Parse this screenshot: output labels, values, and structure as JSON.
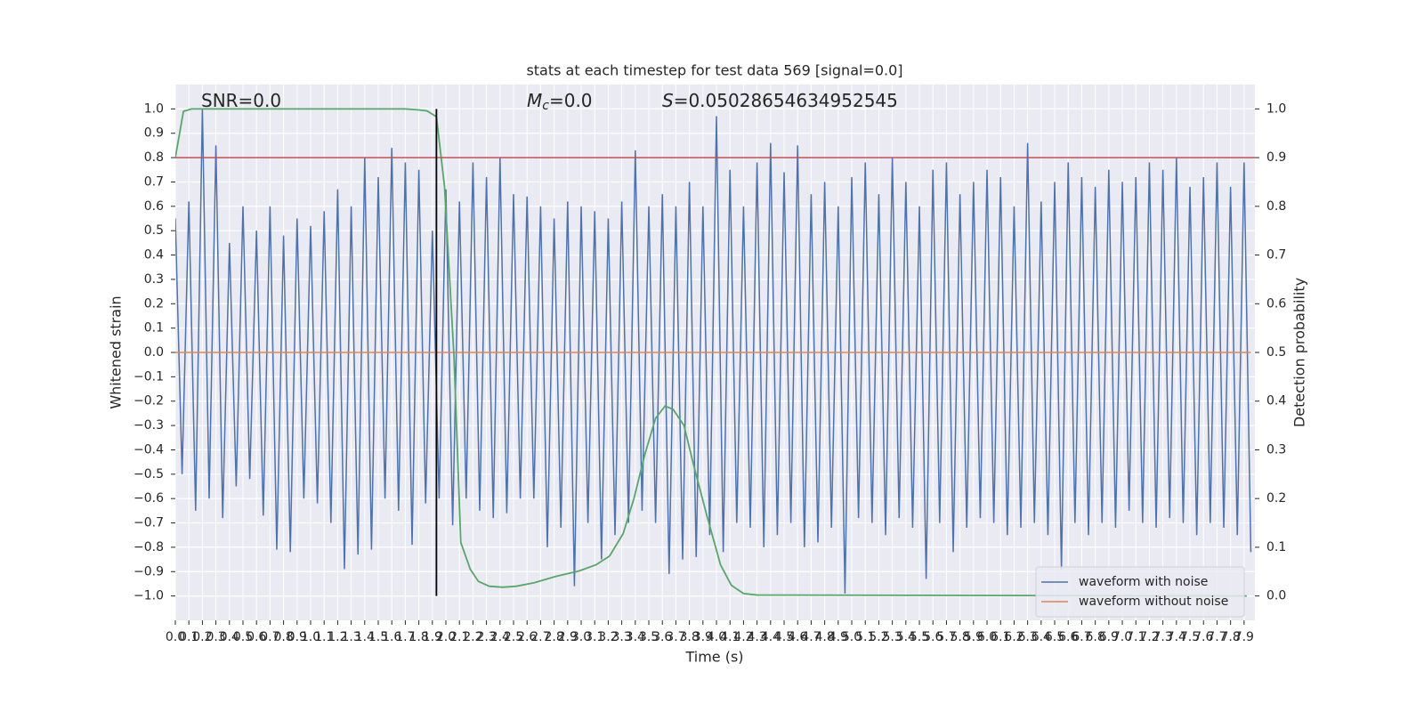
{
  "chart_data": {
    "type": "line",
    "title": "stats at each timestep for test data 569 [signal=0.0]",
    "xlabel": "Time (s)",
    "ylabel": "Whitened strain",
    "y2label": "Detection probability",
    "grid": true,
    "legend": "lower right",
    "annotations": [
      {
        "text": "SNR=0.0"
      },
      {
        "symbol": "M",
        "subscript": "c",
        "text": "=0.0"
      },
      {
        "symbol": "S",
        "text": "=0.05028654634952545"
      }
    ],
    "xlim": [
      0,
      7.98
    ],
    "ylim": [
      -1.1,
      1.1
    ],
    "y2lim": [
      -0.05,
      1.05
    ],
    "xticks": [
      {
        "value": 0,
        "label": "0.0"
      },
      0.1,
      0.2,
      0.3,
      0.4,
      0.5,
      0.6,
      0.7,
      0.8,
      0.9,
      {
        "value": 1,
        "label": "1.0"
      },
      1.1,
      1.2,
      1.3,
      1.4,
      1.5,
      1.6,
      1.7,
      1.8,
      1.9,
      {
        "value": 2,
        "label": "2.0"
      },
      2.1,
      2.2,
      2.3,
      2.4,
      2.5,
      2.6,
      2.7,
      2.8,
      2.9,
      {
        "value": 3,
        "label": "3.0"
      },
      3.1,
      3.2,
      3.3,
      3.4,
      3.5,
      3.6,
      3.7,
      3.8,
      3.9,
      {
        "value": 4,
        "label": "4.0"
      },
      4.1,
      4.2,
      4.3,
      4.4,
      4.5,
      4.6,
      4.7,
      4.8,
      4.9,
      {
        "value": 5,
        "label": "5.0"
      },
      5.1,
      5.2,
      5.3,
      5.4,
      5.5,
      5.6,
      5.7,
      5.8,
      5.9,
      {
        "value": 6,
        "label": "6.0"
      },
      6.1,
      6.2,
      6.3,
      6.4,
      6.5,
      6.6,
      6.7,
      6.8,
      6.9,
      {
        "value": 7,
        "label": "7.0"
      },
      7.1,
      7.2,
      7.3,
      7.4,
      7.5,
      7.6,
      7.7,
      7.8,
      7.9
    ],
    "yticks": [
      {
        "value": -1,
        "label": "−1.0"
      },
      {
        "value": -0.9,
        "label": "−0.9"
      },
      {
        "value": -0.8,
        "label": "−0.8"
      },
      {
        "value": -0.7,
        "label": "−0.7"
      },
      {
        "value": -0.6,
        "label": "−0.6"
      },
      {
        "value": -0.5,
        "label": "−0.5"
      },
      {
        "value": -0.4,
        "label": "−0.4"
      },
      {
        "value": -0.3,
        "label": "−0.3"
      },
      {
        "value": -0.2,
        "label": "−0.2"
      },
      {
        "value": -0.1,
        "label": "−0.1"
      },
      {
        "value": 0,
        "label": "0.0"
      },
      0.1,
      0.2,
      0.3,
      0.4,
      0.5,
      0.6,
      0.7,
      0.8,
      0.9,
      {
        "value": 1,
        "label": "1.0"
      }
    ],
    "y2ticks": [
      {
        "value": 0,
        "label": "0.0"
      },
      0.1,
      0.2,
      0.3,
      0.4,
      0.5,
      0.6,
      0.7,
      0.8,
      0.9,
      {
        "value": 1,
        "label": "1.0"
      }
    ],
    "series": [
      {
        "name": "waveform with noise",
        "color": "#4c72b0",
        "x": [
          0,
          0.05,
          0.1,
          0.15,
          0.2,
          0.25,
          0.3,
          0.35,
          0.4,
          0.45,
          0.5,
          0.55,
          0.6,
          0.65,
          0.7,
          0.75,
          0.8,
          0.85,
          0.9,
          0.95,
          1,
          1.05,
          1.1,
          1.15,
          1.2,
          1.25,
          1.3,
          1.35,
          1.4,
          1.45,
          1.5,
          1.55,
          1.6,
          1.65,
          1.7,
          1.75,
          1.8,
          1.85,
          1.9,
          1.95,
          2,
          2.05,
          2.1,
          2.15,
          2.2,
          2.25,
          2.3,
          2.35,
          2.4,
          2.45,
          2.5,
          2.55,
          2.6,
          2.65,
          2.7,
          2.75,
          2.8,
          2.85,
          2.9,
          2.95,
          3,
          3.05,
          3.1,
          3.15,
          3.2,
          3.25,
          3.3,
          3.35,
          3.4,
          3.45,
          3.5,
          3.55,
          3.6,
          3.65,
          3.7,
          3.75,
          3.8,
          3.85,
          3.9,
          3.95,
          4,
          4.05,
          4.1,
          4.15,
          4.2,
          4.25,
          4.3,
          4.35,
          4.4,
          4.45,
          4.5,
          4.55,
          4.6,
          4.65,
          4.7,
          4.75,
          4.8,
          4.85,
          4.9,
          4.95,
          5,
          5.05,
          5.1,
          5.15,
          5.2,
          5.25,
          5.3,
          5.35,
          5.4,
          5.45,
          5.5,
          5.55,
          5.6,
          5.65,
          5.7,
          5.75,
          5.8,
          5.85,
          5.9,
          5.95,
          6,
          6.05,
          6.1,
          6.15,
          6.2,
          6.25,
          6.3,
          6.35,
          6.4,
          6.45,
          6.5,
          6.55,
          6.6,
          6.65,
          6.7,
          6.75,
          6.8,
          6.85,
          6.9,
          6.95,
          7,
          7.05,
          7.1,
          7.15,
          7.2,
          7.25,
          7.3,
          7.35,
          7.4,
          7.45,
          7.5,
          7.55,
          7.6,
          7.65,
          7.7,
          7.75,
          7.8,
          7.85,
          7.9,
          7.95
        ],
        "values": [
          0.55,
          -0.5,
          0.62,
          -0.65,
          1.0,
          -0.6,
          0.85,
          -0.68,
          0.45,
          -0.55,
          0.6,
          -0.52,
          0.5,
          -0.67,
          0.6,
          -0.81,
          0.48,
          -0.82,
          0.55,
          -0.6,
          0.52,
          -0.62,
          0.58,
          -0.7,
          0.67,
          -0.89,
          0.6,
          -0.83,
          0.8,
          -0.81,
          0.72,
          -0.6,
          0.84,
          -0.65,
          0.78,
          -0.79,
          0.75,
          -0.62,
          0.5,
          -0.6,
          0.67,
          -0.71,
          0.62,
          -0.6,
          0.78,
          -0.65,
          0.72,
          -0.68,
          0.8,
          -0.66,
          0.65,
          -0.6,
          0.64,
          -0.6,
          0.6,
          -0.8,
          0.55,
          -0.72,
          0.62,
          -0.96,
          0.6,
          -0.7,
          0.58,
          -0.85,
          0.55,
          -0.75,
          0.62,
          -0.7,
          0.83,
          -0.65,
          0.6,
          -0.7,
          0.65,
          -0.91,
          0.6,
          -0.85,
          0.7,
          -0.84,
          0.6,
          -0.75,
          0.97,
          -0.82,
          0.75,
          -0.7,
          0.6,
          -0.72,
          0.78,
          -0.8,
          0.86,
          -0.75,
          0.74,
          -0.7,
          0.85,
          -0.8,
          0.65,
          -0.78,
          0.7,
          -0.72,
          0.6,
          -0.99,
          0.72,
          -0.68,
          0.78,
          -0.7,
          0.65,
          -0.75,
          0.8,
          -0.68,
          0.7,
          -0.72,
          0.6,
          -0.93,
          0.75,
          -0.7,
          0.78,
          -0.82,
          0.65,
          -0.72,
          0.7,
          -0.68,
          0.75,
          -0.7,
          0.72,
          -0.75,
          0.6,
          -0.72,
          0.86,
          -0.7,
          0.62,
          -0.75,
          0.7,
          -0.89,
          0.78,
          -0.7,
          0.72,
          -0.75,
          0.68,
          -0.7,
          0.75,
          -0.72,
          0.7,
          -0.65,
          0.72,
          -0.7,
          0.78,
          -0.72,
          0.75,
          -0.68,
          0.8,
          -0.7,
          0.68,
          -0.75,
          0.72,
          -0.7,
          0.78,
          -0.72,
          0.68,
          -0.75,
          0.78,
          -0.82
        ]
      },
      {
        "name": "waveform without noise",
        "color": "#dd8452",
        "x": [
          0,
          7.95
        ],
        "values": [
          0,
          0
        ]
      },
      {
        "color": "#55a868",
        "axis": "y2",
        "x": [
          0,
          0.06,
          0.12,
          1.7,
          1.8,
          1.86,
          1.93,
          1.99,
          2.06,
          2.11,
          2.18,
          2.24,
          2.32,
          2.42,
          2.52,
          2.65,
          2.81,
          2.98,
          3.11,
          3.21,
          3.31,
          3.39,
          3.47,
          3.55,
          3.62,
          3.68,
          3.76,
          3.83,
          3.93,
          4.03,
          4.11,
          4.2,
          4.3,
          7.92
        ],
        "values": [
          0.9,
          0.995,
          1.0,
          1.0,
          0.998,
          0.996,
          0.984,
          0.84,
          0.49,
          0.11,
          0.055,
          0.03,
          0.02,
          0.018,
          0.02,
          0.027,
          0.04,
          0.051,
          0.064,
          0.082,
          0.128,
          0.2,
          0.29,
          0.365,
          0.39,
          0.383,
          0.35,
          0.27,
          0.164,
          0.064,
          0.022,
          0.005,
          0.002,
          0.0
        ]
      }
    ],
    "hlines": [
      {
        "y": 0.8,
        "color": "#c44e52"
      }
    ],
    "vlines": [
      {
        "x": 1.93,
        "ymin": -1,
        "ymax": 1,
        "color": "#000000"
      }
    ]
  }
}
